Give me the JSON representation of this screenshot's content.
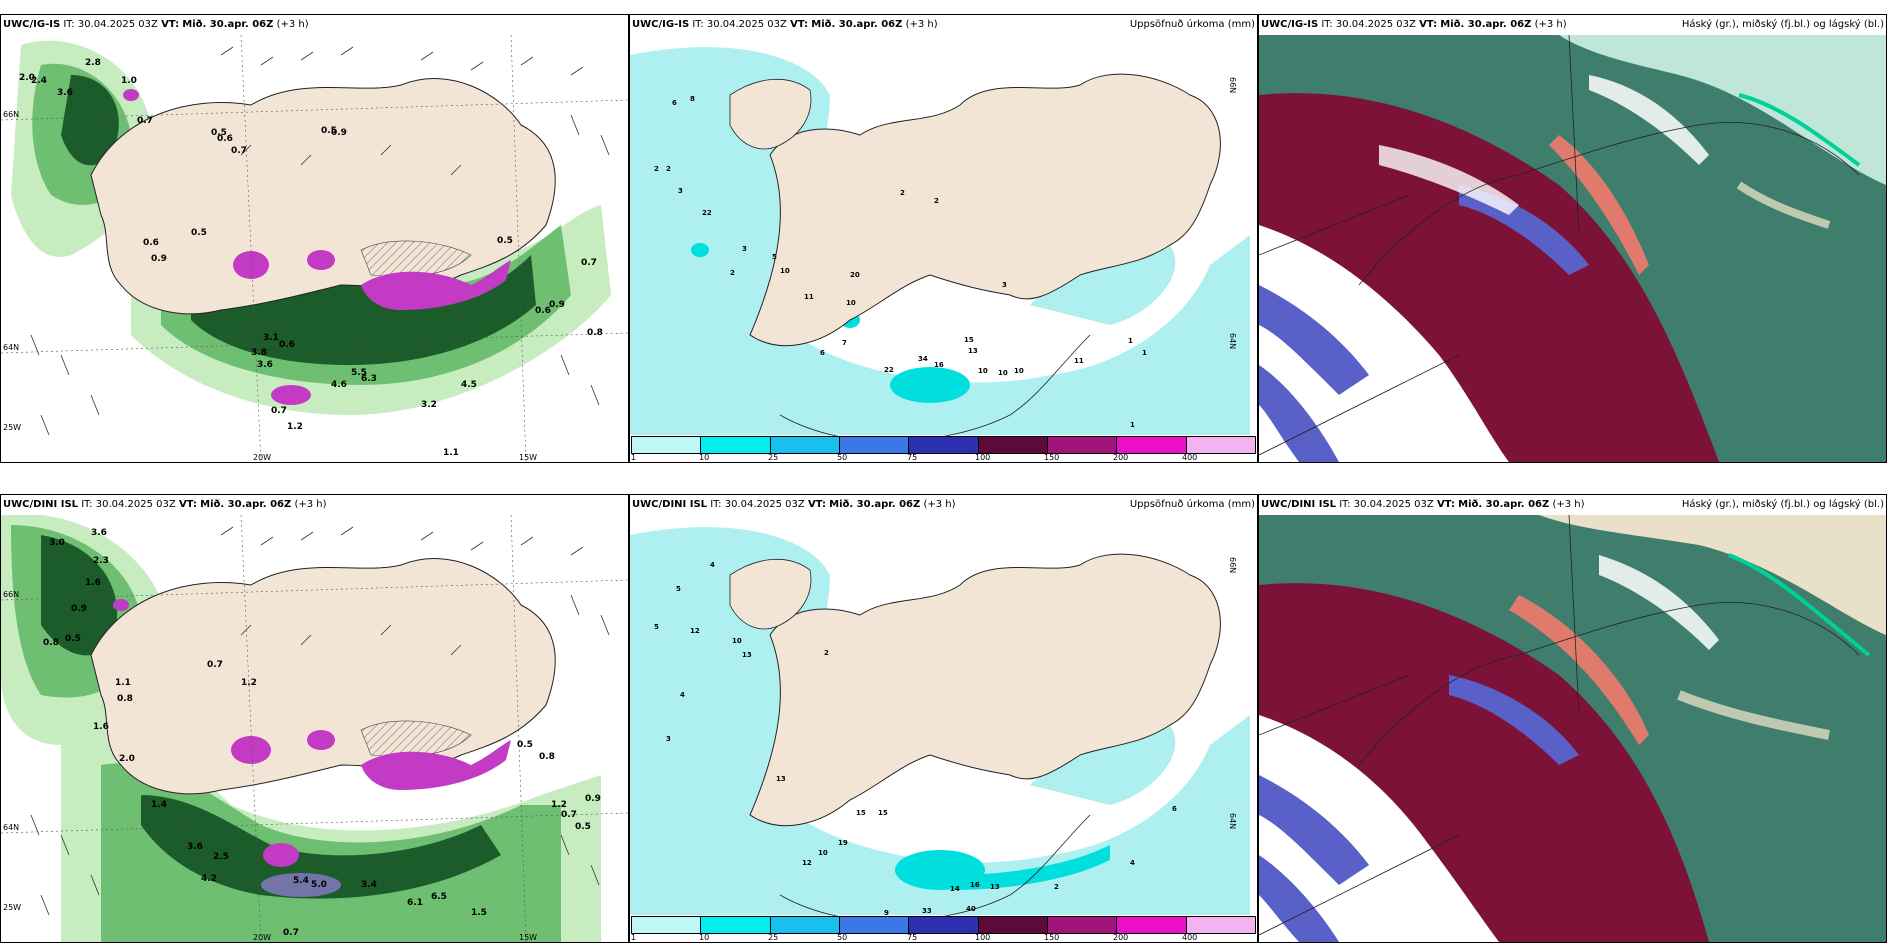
{
  "panels": [
    {
      "model": "UWC/IG-IS",
      "it_label": "IT:",
      "it_value": "30.04.2025 03Z",
      "vt_label": "VT:",
      "vt_value": "Mið. 30.apr. 06Z",
      "lead": "(+3 h)",
      "right_title": "",
      "grid_labels": [
        "20W",
        "15W",
        "66N",
        "64N",
        "25W"
      ]
    },
    {
      "model": "UWC/IG-IS",
      "it_label": "IT:",
      "it_value": "30.04.2025 03Z",
      "vt_label": "VT:",
      "vt_value": "Mið. 30.apr. 06Z",
      "lead": "(+3 h)",
      "right_title": "Uppsöfnuð úrkoma (mm)",
      "grid_labels": [
        "66N",
        "64N"
      ]
    },
    {
      "model": "UWC/IG-IS",
      "it_label": "IT:",
      "it_value": "30.04.2025 03Z",
      "vt_label": "VT:",
      "vt_value": "Mið. 30.apr. 06Z",
      "lead": "(+3 h)",
      "right_title": "Háský (gr.), miðský (fj.bl.) og lágský (bl.)",
      "grid_labels": []
    },
    {
      "model": "UWC/DINI ISL",
      "it_label": "IT:",
      "it_value": "30.04.2025 03Z",
      "vt_label": "VT:",
      "vt_value": "Mið. 30.apr. 06Z",
      "lead": "(+3 h)",
      "right_title": "",
      "grid_labels": [
        "20W",
        "15W",
        "66N",
        "64N",
        "25W"
      ]
    },
    {
      "model": "UWC/DINI ISL",
      "it_label": "IT:",
      "it_value": "30.04.2025 03Z",
      "vt_label": "VT:",
      "vt_value": "Mið. 30.apr. 06Z",
      "lead": "(+3 h)",
      "right_title": "Uppsöfnuð úrkoma (mm)",
      "grid_labels": [
        "66N",
        "64N"
      ]
    },
    {
      "model": "UWC/DINI ISL",
      "it_label": "IT:",
      "it_value": "30.04.2025 03Z",
      "vt_label": "VT:",
      "vt_value": "Mið. 30.apr. 06Z",
      "lead": "(+3 h)",
      "right_title": "Háský (gr.), miðský (fj.bl.) og lágský (bl.)",
      "grid_labels": []
    }
  ],
  "precip_values": {
    "ig_is": [
      "6",
      "8",
      "2",
      "2",
      "3",
      "22",
      "3",
      "2",
      "5",
      "10",
      "20",
      "11",
      "10",
      "7",
      "6",
      "22",
      "34",
      "16",
      "15",
      "13",
      "10",
      "10",
      "10",
      "11",
      "2",
      "2",
      "3",
      "1",
      "1",
      "1"
    ],
    "dini_isl": [
      "5",
      "4",
      "5",
      "12",
      "10",
      "13",
      "4",
      "2",
      "3",
      "13",
      "15",
      "15",
      "19",
      "10",
      "12",
      "9",
      "17",
      "14",
      "16",
      "40",
      "33",
      "13",
      "12",
      "11",
      "2",
      "4",
      "1",
      "1",
      "1",
      "6"
    ]
  },
  "wind_values": {
    "ig_is": [
      "2.8",
      "2.0",
      "2.4",
      "3.6",
      "1.0",
      "0.7",
      "0.5",
      "0.6",
      "0.5",
      "0.9",
      "0.7",
      "0.5",
      "0.6",
      "0.9",
      "3.8",
      "3.6",
      "3.1",
      "0.6",
      "4.6",
      "5.5",
      "6.3",
      "4.5",
      "3.2",
      "0.7",
      "1.2",
      "1.1",
      "0.5",
      "0.6",
      "0.9",
      "0.7",
      "0.8"
    ],
    "dini_isl": [
      "3.0",
      "3.6",
      "2.3",
      "1.6",
      "0.9",
      "0.5",
      "0.8",
      "1.1",
      "0.8",
      "1.6",
      "0.7",
      "1.2",
      "2.0",
      "1.4",
      "3.6",
      "2.5",
      "4.2",
      "5.4",
      "5.0",
      "3.4",
      "6.5",
      "6.1",
      "1.5",
      "0.7",
      "0.5",
      "0.8",
      "1.2",
      "0.7",
      "0.5",
      "0.9"
    ]
  },
  "colorbar": {
    "ticks": [
      "1",
      "10",
      "25",
      "50",
      "75",
      "100",
      "150",
      "200",
      "400"
    ],
    "colors": [
      "#bff7f7",
      "#00eeee",
      "#19c0ee",
      "#3b77e6",
      "#2c2fb0",
      "#5c0a3c",
      "#a0157a",
      "#ee10c8",
      "#f2b3f0"
    ]
  },
  "colors": {
    "land": "#f3e5d6",
    "sea_precip": "#aef0f0",
    "green_light": "#c7ecc0",
    "green_mid": "#6fbf72",
    "green_dark": "#1c5c2b",
    "magenta": "#c33bc5",
    "cloud_high": "#3f7e6d",
    "cloud_mid_dark": "#7c1238",
    "cloud_low": "#5960c7"
  }
}
